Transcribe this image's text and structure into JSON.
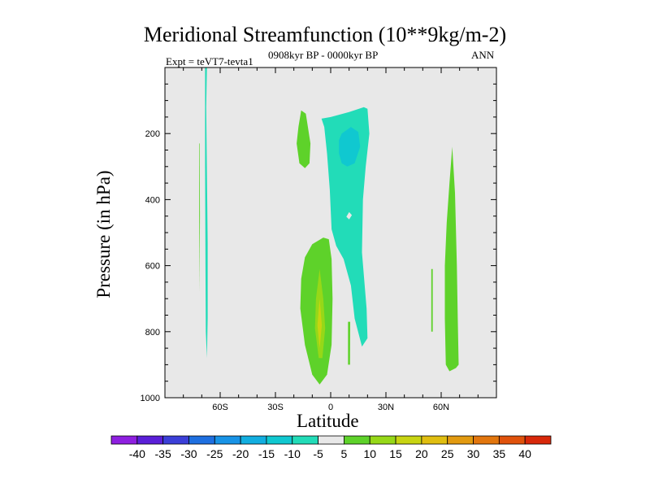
{
  "chart_data": {
    "type": "heatmap",
    "title": "Meridional Streamfunction (10**9kg/m-2)",
    "left_label": "Expt = teVT7-tevta1",
    "center_label": "0908kyr BP - 0000kyr BP",
    "right_label": "ANN",
    "xlabel": "Latitude",
    "ylabel": "Pressure (in hPa)",
    "xlim": [
      -90,
      90
    ],
    "ylim": [
      1000,
      0
    ],
    "x_ticks": [
      {
        "value": -60,
        "label": "60S"
      },
      {
        "value": -30,
        "label": "30S"
      },
      {
        "value": 0,
        "label": "0"
      },
      {
        "value": 30,
        "label": "30N"
      },
      {
        "value": 60,
        "label": "60N"
      }
    ],
    "y_ticks": [
      {
        "value": 200,
        "label": "200"
      },
      {
        "value": 400,
        "label": "400"
      },
      {
        "value": 600,
        "label": "600"
      },
      {
        "value": 800,
        "label": "800"
      },
      {
        "value": 1000,
        "label": "1000"
      }
    ],
    "colorbar": {
      "labels": [
        "-40",
        "-35",
        "-30",
        "-25",
        "-20",
        "-15",
        "-10",
        "-5",
        "5",
        "10",
        "15",
        "20",
        "25",
        "30",
        "35",
        "40"
      ],
      "colors": [
        "#8e1fe0",
        "#5a1fd8",
        "#3b3fd8",
        "#1e6fe0",
        "#1893e6",
        "#12aee0",
        "#10c8d0",
        "#22dcb8",
        "#e8e8e8",
        "#5ed22a",
        "#96d818",
        "#c8d412",
        "#e0be10",
        "#e29a10",
        "#e2760e",
        "#e0520c",
        "#d8280a"
      ]
    },
    "contours": [
      {
        "name": "contour-neg-5-sh-highlat",
        "fill": "#22dcb8",
        "points": [
          [
            -68.2,
            0
          ],
          [
            -67.2,
            0
          ],
          [
            -67.6,
            120
          ],
          [
            -67.2,
            320
          ],
          [
            -66.8,
            530
          ],
          [
            -66.8,
            760
          ],
          [
            -67.2,
            880
          ],
          [
            -67.8,
            800
          ],
          [
            -68.0,
            600
          ],
          [
            -68.2,
            300
          ]
        ]
      },
      {
        "name": "contour-pos-5-sh-thin",
        "fill": "#5ed22a",
        "points": [
          [
            -71.4,
            230
          ],
          [
            -71.1,
            230
          ],
          [
            -71.0,
            450
          ],
          [
            -71.2,
            680
          ],
          [
            -71.4,
            450
          ]
        ]
      },
      {
        "name": "contour-pos-5-upper-sh-trop",
        "fill": "#5ed22a",
        "points": [
          [
            -16,
            130
          ],
          [
            -13.5,
            140
          ],
          [
            -11,
            230
          ],
          [
            -11.5,
            290
          ],
          [
            -14,
            305
          ],
          [
            -17,
            290
          ],
          [
            -18.5,
            230
          ],
          [
            -17.5,
            180
          ]
        ]
      },
      {
        "name": "contour-neg-5-tropics",
        "fill": "#22dcb8",
        "points": [
          [
            -5,
            155
          ],
          [
            0,
            150
          ],
          [
            10,
            135
          ],
          [
            18,
            120
          ],
          [
            20,
            125
          ],
          [
            21,
            200
          ],
          [
            19,
            300
          ],
          [
            17.5,
            400
          ],
          [
            17,
            560
          ],
          [
            19.5,
            730
          ],
          [
            20,
            820
          ],
          [
            17,
            845
          ],
          [
            13,
            760
          ],
          [
            11,
            660
          ],
          [
            7,
            580
          ],
          [
            3,
            540
          ],
          [
            0.5,
            490
          ],
          [
            -0.5,
            370
          ],
          [
            -2,
            260
          ],
          [
            -3.5,
            180
          ]
        ]
      },
      {
        "name": "contour-neg-10-upper-trop",
        "fill": "#10c8d0",
        "points": [
          [
            6,
            200
          ],
          [
            11,
            180
          ],
          [
            15,
            195
          ],
          [
            16,
            240
          ],
          [
            13,
            290
          ],
          [
            9,
            300
          ],
          [
            6,
            290
          ],
          [
            4.5,
            260
          ],
          [
            4.5,
            220
          ]
        ]
      },
      {
        "name": "contour-zero-hole",
        "fill": "#e8e8e8",
        "points": [
          [
            10,
            438
          ],
          [
            11.5,
            447
          ],
          [
            10,
            460
          ],
          [
            8.5,
            452
          ]
        ]
      },
      {
        "name": "contour-pos-5-lower-sh-trop",
        "fill": "#5ed22a",
        "points": [
          [
            -4,
            515
          ],
          [
            -1,
            520
          ],
          [
            0.5,
            580
          ],
          [
            1,
            700
          ],
          [
            0.5,
            840
          ],
          [
            -2,
            930
          ],
          [
            -6,
            960
          ],
          [
            -10,
            930
          ],
          [
            -14,
            840
          ],
          [
            -16.5,
            730
          ],
          [
            -16,
            640
          ],
          [
            -14,
            575
          ],
          [
            -10,
            535
          ]
        ]
      },
      {
        "name": "contour-pos-10-lower-sh-trop",
        "fill": "#96d818",
        "points": [
          [
            -6,
            610
          ],
          [
            -4,
            700
          ],
          [
            -3,
            790
          ],
          [
            -4.5,
            880
          ],
          [
            -6.5,
            880
          ],
          [
            -8.5,
            790
          ],
          [
            -8,
            700
          ]
        ]
      },
      {
        "name": "contour-pos-15-lower-sh-trop",
        "fill": "#c8d412",
        "points": [
          [
            -6,
            700
          ],
          [
            -4.8,
            780
          ],
          [
            -6,
            850
          ],
          [
            -7.2,
            780
          ]
        ]
      },
      {
        "name": "contour-pos-5-thin-10n",
        "fill": "#5ed22a",
        "points": [
          [
            9.4,
            770
          ],
          [
            10.6,
            770
          ],
          [
            10.5,
            900
          ],
          [
            9.4,
            900
          ]
        ]
      },
      {
        "name": "contour-pos-5-thin-55n",
        "fill": "#5ed22a",
        "points": [
          [
            54.6,
            610
          ],
          [
            55.4,
            610
          ],
          [
            55.4,
            800
          ],
          [
            54.6,
            800
          ]
        ]
      },
      {
        "name": "contour-pos-5-nh-highlat",
        "fill": "#5ed22a",
        "points": [
          [
            66,
            240
          ],
          [
            67.5,
            380
          ],
          [
            68.5,
            600
          ],
          [
            69,
            760
          ],
          [
            69.5,
            900
          ],
          [
            68,
            910
          ],
          [
            64.5,
            920
          ],
          [
            62.5,
            900
          ],
          [
            62,
            760
          ],
          [
            62,
            600
          ],
          [
            63,
            470
          ],
          [
            64.5,
            350
          ]
        ]
      }
    ]
  }
}
